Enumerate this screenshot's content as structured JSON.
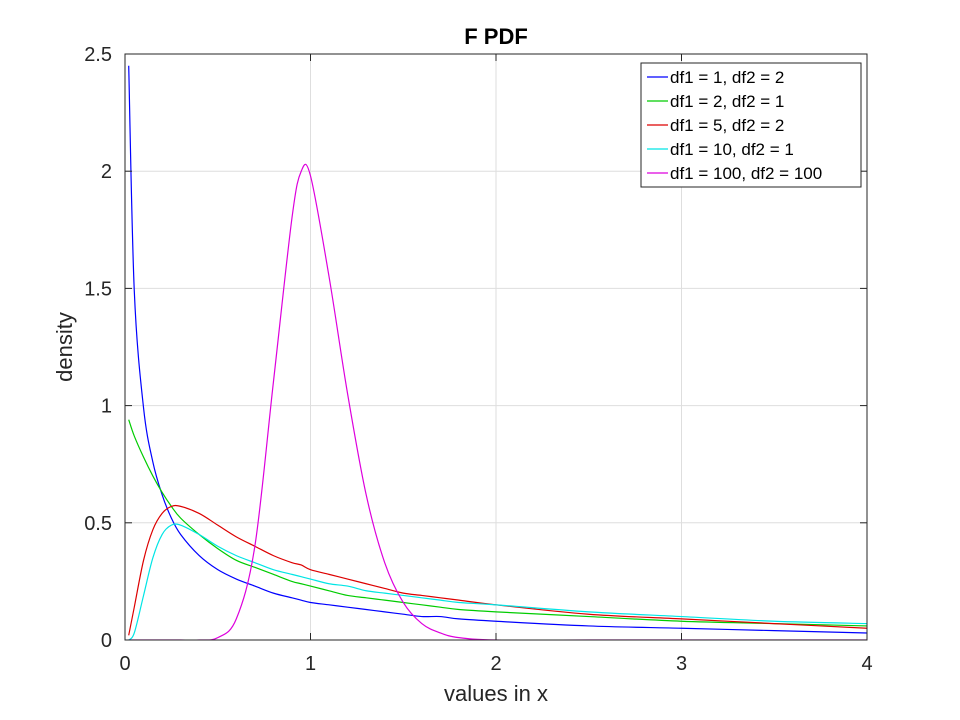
{
  "chart_data": {
    "type": "line",
    "title": "F PDF",
    "xlabel": "values in x",
    "ylabel": "density",
    "xlim": [
      0,
      4
    ],
    "ylim": [
      0,
      2.5
    ],
    "xticks": [
      "0",
      "1",
      "2",
      "3",
      "4"
    ],
    "yticks": [
      "0",
      "0.5",
      "1",
      "1.5",
      "2",
      "2.5"
    ],
    "grid": true,
    "legend_position": "top-right",
    "x": [
      0.02,
      0.05,
      0.1,
      0.15,
      0.2,
      0.25,
      0.3,
      0.4,
      0.5,
      0.6,
      0.7,
      0.8,
      0.9,
      0.95,
      1.0,
      1.1,
      1.2,
      1.3,
      1.4,
      1.5,
      1.6,
      1.7,
      1.8,
      2.0,
      2.5,
      3.0,
      3.5,
      4.0
    ],
    "series": [
      {
        "name": "df1 = 1, df2 = 2",
        "color": "#0000ff",
        "values": [
          2.45,
          1.49,
          0.99,
          0.76,
          0.62,
          0.52,
          0.45,
          0.36,
          0.3,
          0.26,
          0.23,
          0.2,
          0.18,
          0.17,
          0.16,
          0.15,
          0.14,
          0.13,
          0.12,
          0.11,
          0.1,
          0.1,
          0.09,
          0.08,
          0.06,
          0.05,
          0.04,
          0.03
        ]
      },
      {
        "name": "df1 = 2, df2 = 1",
        "color": "#00cc00",
        "values": [
          0.94,
          0.87,
          0.78,
          0.7,
          0.63,
          0.57,
          0.52,
          0.45,
          0.39,
          0.34,
          0.31,
          0.28,
          0.25,
          0.24,
          0.23,
          0.21,
          0.19,
          0.18,
          0.17,
          0.16,
          0.15,
          0.14,
          0.13,
          0.12,
          0.1,
          0.08,
          0.07,
          0.06
        ]
      },
      {
        "name": "df1 = 5, df2 = 2",
        "color": "#dd0000",
        "values": [
          0.02,
          0.14,
          0.34,
          0.47,
          0.54,
          0.57,
          0.57,
          0.54,
          0.49,
          0.44,
          0.4,
          0.36,
          0.33,
          0.32,
          0.3,
          0.28,
          0.26,
          0.24,
          0.22,
          0.2,
          0.19,
          0.18,
          0.17,
          0.15,
          0.11,
          0.09,
          0.07,
          0.05
        ]
      },
      {
        "name": "df1 = 10, df2 = 1",
        "color": "#00e5e5",
        "values": [
          0.0,
          0.03,
          0.19,
          0.35,
          0.45,
          0.49,
          0.49,
          0.45,
          0.4,
          0.36,
          0.33,
          0.3,
          0.28,
          0.27,
          0.26,
          0.24,
          0.23,
          0.21,
          0.2,
          0.19,
          0.18,
          0.17,
          0.16,
          0.15,
          0.12,
          0.1,
          0.08,
          0.07
        ]
      },
      {
        "name": "df1 = 100, df2 = 100",
        "color": "#dd00dd",
        "values": [
          0.0,
          0.0,
          0.0,
          0.0,
          0.0,
          0.0,
          0.0,
          0.0,
          0.01,
          0.09,
          0.4,
          1.1,
          1.8,
          2.0,
          1.98,
          1.55,
          1.05,
          0.62,
          0.33,
          0.16,
          0.07,
          0.03,
          0.01,
          0.0,
          0.0,
          0.0,
          0.0,
          0.0
        ]
      }
    ]
  }
}
